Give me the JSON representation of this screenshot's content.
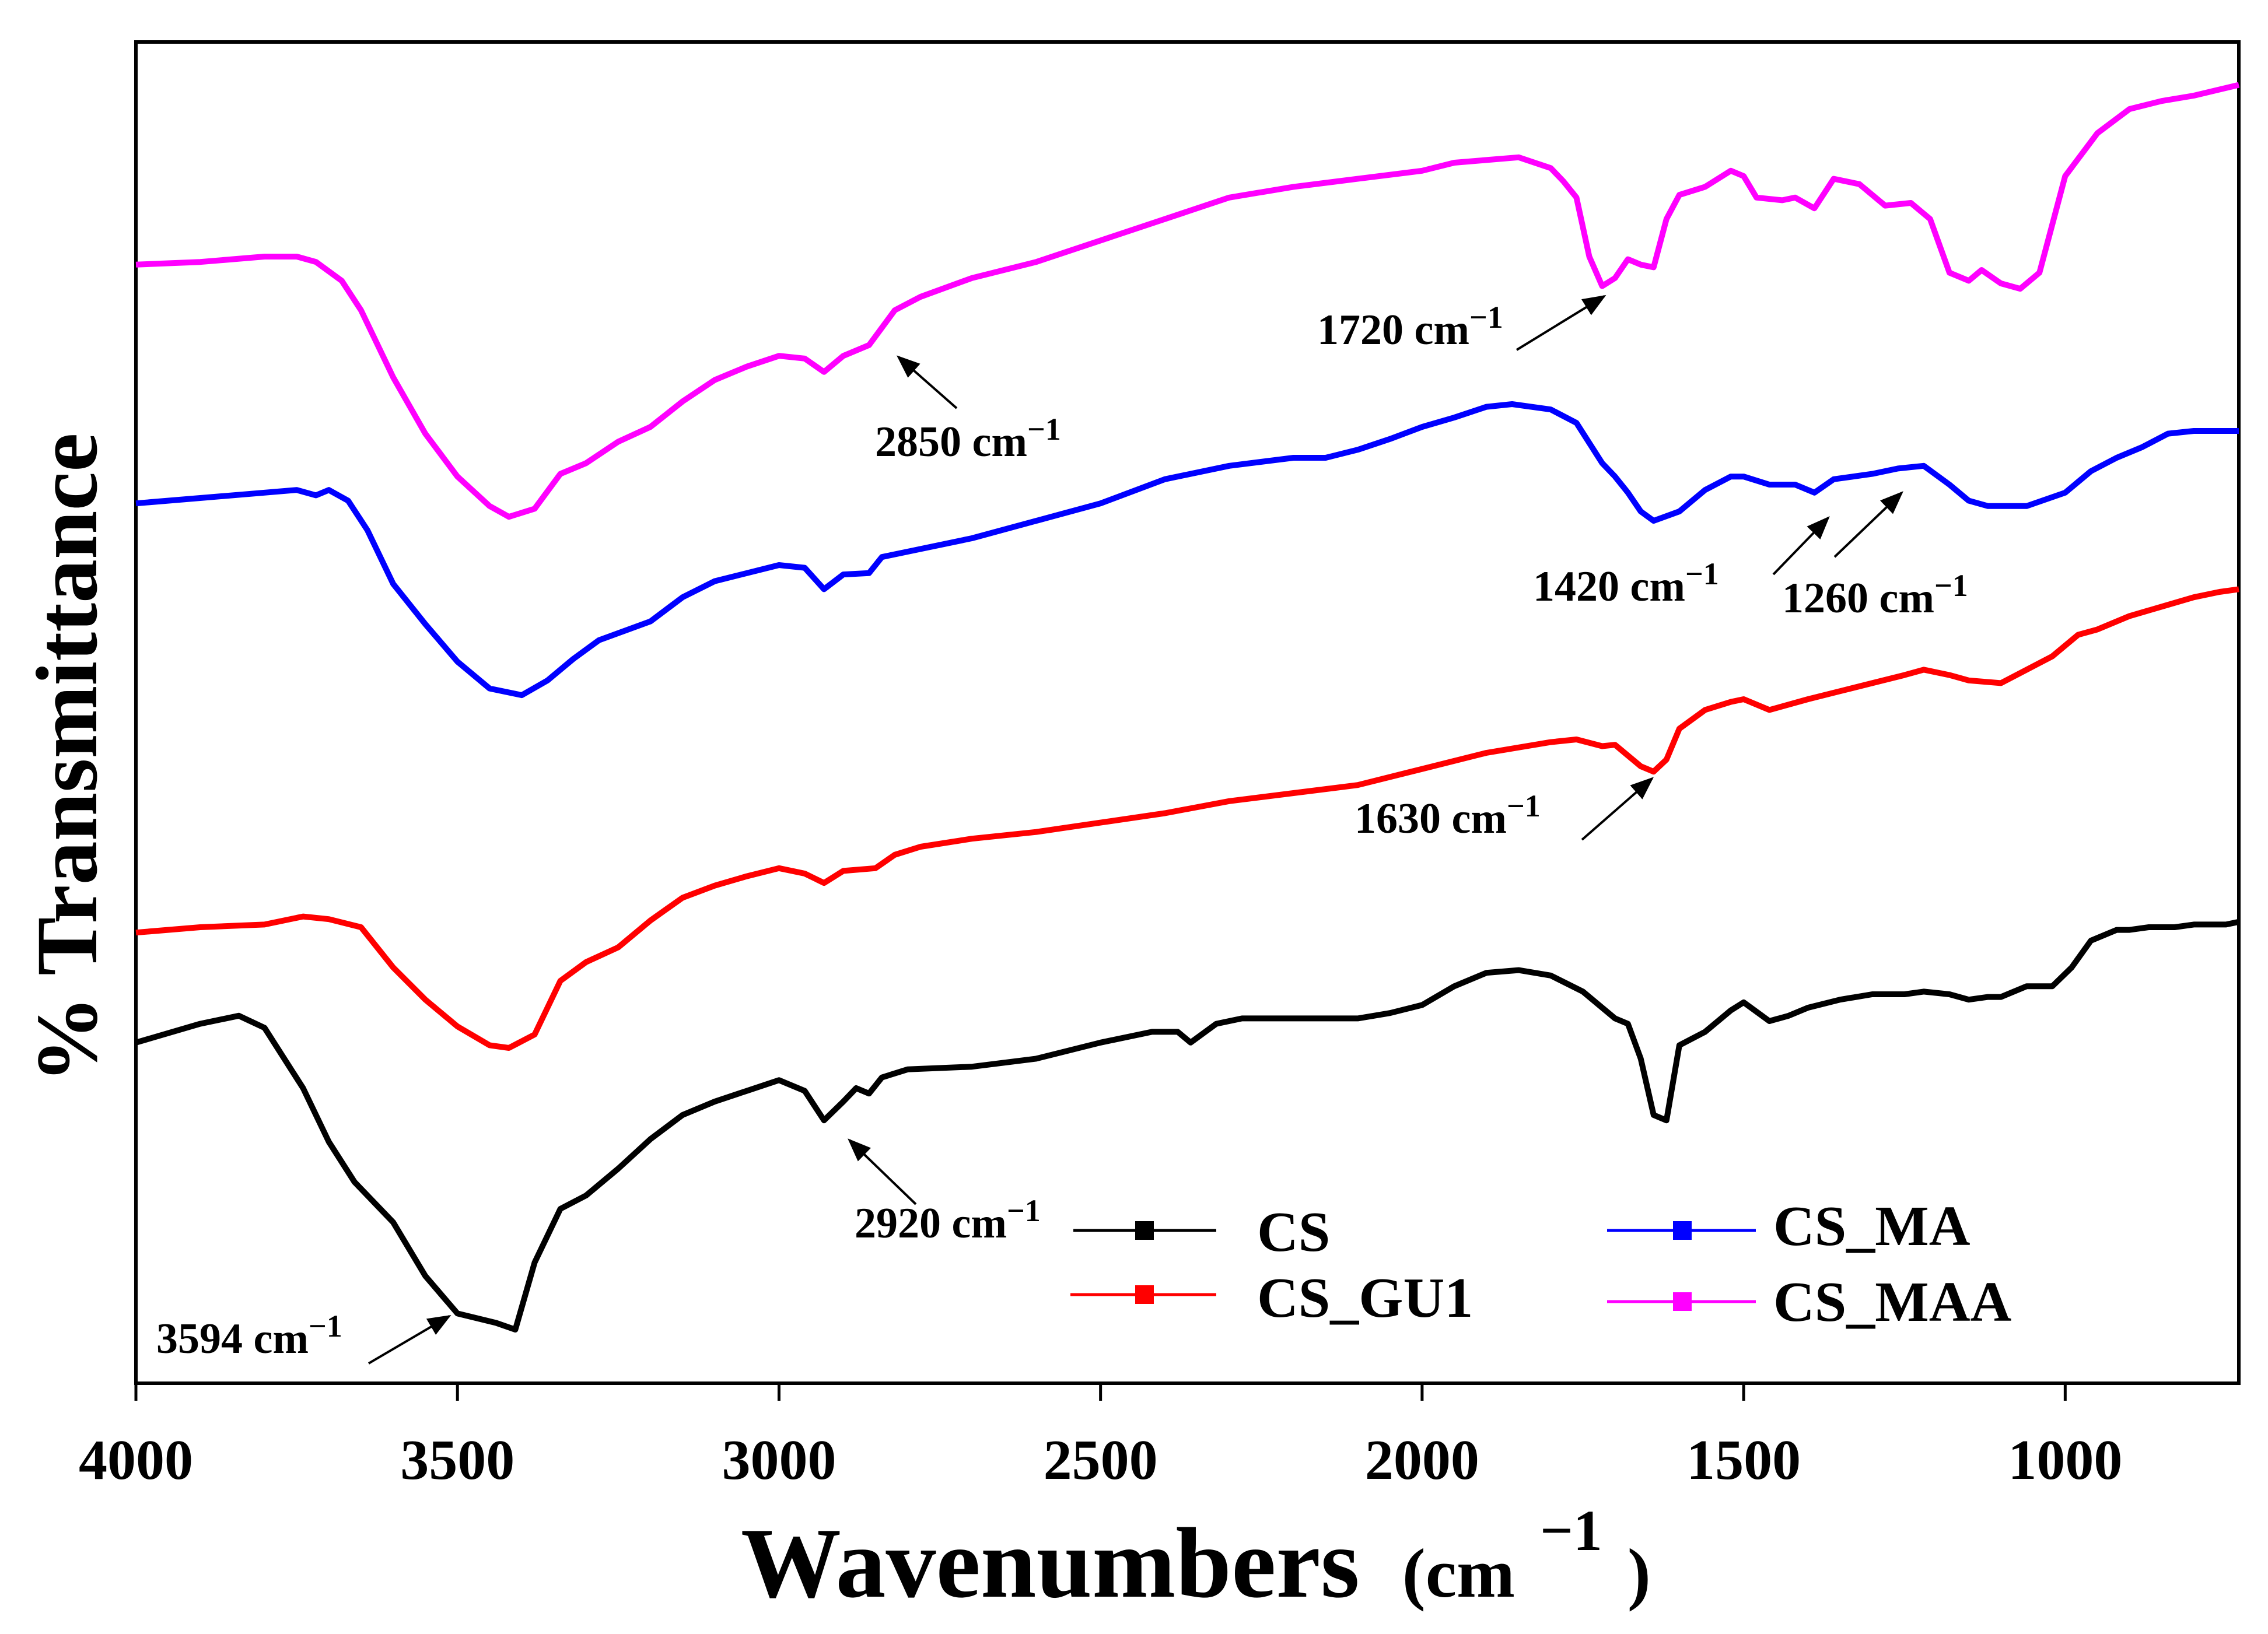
{
  "chart_data": {
    "type": "line",
    "title": "",
    "xlabel": "Wavenumbers",
    "xlabel_unit_base": "(cm",
    "xlabel_unit_exp": "−1",
    "xlabel_unit_close": ")",
    "ylabel": "% Transmittance",
    "xlim": [
      4000,
      730
    ],
    "ylim": [
      0,
      100
    ],
    "x_reversed": true,
    "grid": false,
    "x_ticks": [
      4000,
      3500,
      3000,
      2500,
      2000,
      1500,
      1000
    ],
    "x_tick_labels": [
      "4000",
      "3500",
      "3000",
      "2500",
      "2000",
      "1500",
      "1000"
    ],
    "legend_position": "bottom-right",
    "series": [
      {
        "name": "CS",
        "color": "#000000",
        "points": [
          [
            4000,
            25.4
          ],
          [
            3900,
            26.8
          ],
          [
            3840,
            27.4
          ],
          [
            3800,
            26.5
          ],
          [
            3740,
            22
          ],
          [
            3700,
            18
          ],
          [
            3660,
            15
          ],
          [
            3600,
            12
          ],
          [
            3550,
            8
          ],
          [
            3500,
            5.2
          ],
          [
            3440,
            4.5
          ],
          [
            3410,
            4
          ],
          [
            3380,
            9
          ],
          [
            3340,
            13
          ],
          [
            3300,
            14
          ],
          [
            3250,
            16
          ],
          [
            3200,
            18.2
          ],
          [
            3150,
            20
          ],
          [
            3100,
            21
          ],
          [
            3050,
            21.8
          ],
          [
            3000,
            22.6
          ],
          [
            2960,
            21.8
          ],
          [
            2930,
            19.6
          ],
          [
            2900,
            21
          ],
          [
            2880,
            22
          ],
          [
            2860,
            21.6
          ],
          [
            2840,
            22.8
          ],
          [
            2800,
            23.4
          ],
          [
            2700,
            23.6
          ],
          [
            2600,
            24.2
          ],
          [
            2500,
            25.4
          ],
          [
            2420,
            26.2
          ],
          [
            2380,
            26.2
          ],
          [
            2360,
            25.4
          ],
          [
            2320,
            26.8
          ],
          [
            2280,
            27.2
          ],
          [
            2200,
            27.2
          ],
          [
            2100,
            27.2
          ],
          [
            2050,
            27.6
          ],
          [
            2000,
            28.2
          ],
          [
            1950,
            29.6
          ],
          [
            1900,
            30.6
          ],
          [
            1850,
            30.8
          ],
          [
            1800,
            30.4
          ],
          [
            1750,
            29.2
          ],
          [
            1700,
            27.2
          ],
          [
            1680,
            26.8
          ],
          [
            1660,
            24.2
          ],
          [
            1640,
            20
          ],
          [
            1620,
            19.6
          ],
          [
            1600,
            25.2
          ],
          [
            1560,
            26.2
          ],
          [
            1520,
            27.8
          ],
          [
            1500,
            28.4
          ],
          [
            1460,
            27
          ],
          [
            1430,
            27.4
          ],
          [
            1400,
            28
          ],
          [
            1350,
            28.6
          ],
          [
            1300,
            29
          ],
          [
            1250,
            29
          ],
          [
            1220,
            29.2
          ],
          [
            1180,
            29
          ],
          [
            1150,
            28.6
          ],
          [
            1120,
            28.8
          ],
          [
            1100,
            28.8
          ],
          [
            1060,
            29.6
          ],
          [
            1020,
            29.6
          ],
          [
            990,
            31
          ],
          [
            960,
            33
          ],
          [
            920,
            33.8
          ],
          [
            900,
            33.8
          ],
          [
            870,
            34
          ],
          [
            830,
            34
          ],
          [
            800,
            34.2
          ],
          [
            750,
            34.2
          ],
          [
            730,
            34.4
          ]
        ]
      },
      {
        "name": "CS_GU1",
        "color": "#ff0000",
        "points": [
          [
            4000,
            33.6
          ],
          [
            3900,
            34
          ],
          [
            3800,
            34.2
          ],
          [
            3740,
            34.8
          ],
          [
            3700,
            34.6
          ],
          [
            3650,
            34
          ],
          [
            3600,
            31
          ],
          [
            3550,
            28.6
          ],
          [
            3500,
            26.6
          ],
          [
            3450,
            25.2
          ],
          [
            3420,
            25
          ],
          [
            3380,
            26
          ],
          [
            3340,
            30
          ],
          [
            3300,
            31.4
          ],
          [
            3250,
            32.5
          ],
          [
            3200,
            34.5
          ],
          [
            3150,
            36.2
          ],
          [
            3100,
            37.1
          ],
          [
            3050,
            37.8
          ],
          [
            3000,
            38.4
          ],
          [
            2960,
            38
          ],
          [
            2930,
            37.3
          ],
          [
            2900,
            38.2
          ],
          [
            2850,
            38.4
          ],
          [
            2820,
            39.4
          ],
          [
            2780,
            40
          ],
          [
            2700,
            40.6
          ],
          [
            2600,
            41.1
          ],
          [
            2500,
            41.8
          ],
          [
            2400,
            42.5
          ],
          [
            2300,
            43.4
          ],
          [
            2200,
            44
          ],
          [
            2100,
            44.6
          ],
          [
            2000,
            45.8
          ],
          [
            1900,
            47
          ],
          [
            1800,
            47.8
          ],
          [
            1760,
            48
          ],
          [
            1720,
            47.5
          ],
          [
            1700,
            47.6
          ],
          [
            1680,
            46.8
          ],
          [
            1660,
            46
          ],
          [
            1640,
            45.6
          ],
          [
            1620,
            46.5
          ],
          [
            1600,
            48.8
          ],
          [
            1560,
            50.2
          ],
          [
            1520,
            50.8
          ],
          [
            1500,
            51
          ],
          [
            1460,
            50.2
          ],
          [
            1400,
            51
          ],
          [
            1350,
            51.6
          ],
          [
            1300,
            52.2
          ],
          [
            1250,
            52.8
          ],
          [
            1220,
            53.2
          ],
          [
            1180,
            52.8
          ],
          [
            1150,
            52.4
          ],
          [
            1100,
            52.2
          ],
          [
            1060,
            53.2
          ],
          [
            1020,
            54.2
          ],
          [
            980,
            55.8
          ],
          [
            950,
            56.2
          ],
          [
            900,
            57.2
          ],
          [
            850,
            57.9
          ],
          [
            800,
            58.6
          ],
          [
            760,
            59
          ],
          [
            730,
            59.2
          ]
        ]
      },
      {
        "name": "CS_MA",
        "color": "#0000ff",
        "points": [
          [
            4000,
            65.6
          ],
          [
            3900,
            66
          ],
          [
            3800,
            66.4
          ],
          [
            3750,
            66.6
          ],
          [
            3720,
            66.2
          ],
          [
            3700,
            66.6
          ],
          [
            3670,
            65.8
          ],
          [
            3640,
            63.6
          ],
          [
            3600,
            59.6
          ],
          [
            3550,
            56.6
          ],
          [
            3500,
            53.8
          ],
          [
            3450,
            51.8
          ],
          [
            3400,
            51.3
          ],
          [
            3360,
            52.4
          ],
          [
            3320,
            54
          ],
          [
            3280,
            55.4
          ],
          [
            3200,
            56.8
          ],
          [
            3150,
            58.6
          ],
          [
            3100,
            59.8
          ],
          [
            3050,
            60.4
          ],
          [
            3000,
            61
          ],
          [
            2960,
            60.8
          ],
          [
            2930,
            59.2
          ],
          [
            2900,
            60.3
          ],
          [
            2860,
            60.4
          ],
          [
            2840,
            61.6
          ],
          [
            2800,
            62
          ],
          [
            2700,
            63
          ],
          [
            2600,
            64.3
          ],
          [
            2500,
            65.6
          ],
          [
            2400,
            67.4
          ],
          [
            2300,
            68.4
          ],
          [
            2200,
            69
          ],
          [
            2150,
            69
          ],
          [
            2100,
            69.6
          ],
          [
            2050,
            70.4
          ],
          [
            2000,
            71.3
          ],
          [
            1950,
            72
          ],
          [
            1900,
            72.8
          ],
          [
            1860,
            73
          ],
          [
            1800,
            72.6
          ],
          [
            1760,
            71.6
          ],
          [
            1720,
            68.6
          ],
          [
            1700,
            67.6
          ],
          [
            1680,
            66.4
          ],
          [
            1660,
            65
          ],
          [
            1640,
            64.3
          ],
          [
            1600,
            65
          ],
          [
            1560,
            66.6
          ],
          [
            1520,
            67.6
          ],
          [
            1500,
            67.6
          ],
          [
            1460,
            67
          ],
          [
            1420,
            67
          ],
          [
            1390,
            66.4
          ],
          [
            1360,
            67.4
          ],
          [
            1300,
            67.8
          ],
          [
            1260,
            68.2
          ],
          [
            1220,
            68.4
          ],
          [
            1180,
            67
          ],
          [
            1150,
            65.8
          ],
          [
            1120,
            65.4
          ],
          [
            1100,
            65.4
          ],
          [
            1060,
            65.4
          ],
          [
            1000,
            66.4
          ],
          [
            960,
            68
          ],
          [
            920,
            69
          ],
          [
            880,
            69.8
          ],
          [
            840,
            70.8
          ],
          [
            800,
            71
          ],
          [
            730,
            71
          ]
        ]
      },
      {
        "name": "CS_MAA",
        "color": "#ff00ff",
        "points": [
          [
            4000,
            83.4
          ],
          [
            3900,
            83.6
          ],
          [
            3800,
            84
          ],
          [
            3750,
            84
          ],
          [
            3720,
            83.6
          ],
          [
            3680,
            82.2
          ],
          [
            3650,
            80
          ],
          [
            3600,
            75
          ],
          [
            3550,
            70.8
          ],
          [
            3500,
            67.6
          ],
          [
            3450,
            65.4
          ],
          [
            3420,
            64.6
          ],
          [
            3380,
            65.2
          ],
          [
            3340,
            67.8
          ],
          [
            3300,
            68.6
          ],
          [
            3250,
            70.2
          ],
          [
            3200,
            71.3
          ],
          [
            3150,
            73.2
          ],
          [
            3100,
            74.8
          ],
          [
            3050,
            75.8
          ],
          [
            3000,
            76.6
          ],
          [
            2960,
            76.4
          ],
          [
            2930,
            75.4
          ],
          [
            2900,
            76.6
          ],
          [
            2860,
            77.4
          ],
          [
            2820,
            80
          ],
          [
            2780,
            81
          ],
          [
            2700,
            82.4
          ],
          [
            2600,
            83.6
          ],
          [
            2500,
            85.2
          ],
          [
            2400,
            86.8
          ],
          [
            2300,
            88.4
          ],
          [
            2200,
            89.2
          ],
          [
            2100,
            89.8
          ],
          [
            2000,
            90.4
          ],
          [
            1950,
            91
          ],
          [
            1900,
            91.2
          ],
          [
            1850,
            91.4
          ],
          [
            1800,
            90.6
          ],
          [
            1780,
            89.6
          ],
          [
            1760,
            88.4
          ],
          [
            1740,
            84
          ],
          [
            1720,
            81.8
          ],
          [
            1700,
            82.4
          ],
          [
            1680,
            83.8
          ],
          [
            1660,
            83.4
          ],
          [
            1640,
            83.2
          ],
          [
            1620,
            86.8
          ],
          [
            1600,
            88.6
          ],
          [
            1560,
            89.2
          ],
          [
            1520,
            90.4
          ],
          [
            1500,
            90
          ],
          [
            1480,
            88.4
          ],
          [
            1440,
            88.2
          ],
          [
            1420,
            88.4
          ],
          [
            1390,
            87.6
          ],
          [
            1360,
            89.8
          ],
          [
            1320,
            89.4
          ],
          [
            1280,
            87.8
          ],
          [
            1240,
            88
          ],
          [
            1210,
            86.8
          ],
          [
            1180,
            82.8
          ],
          [
            1150,
            82.2
          ],
          [
            1130,
            83
          ],
          [
            1100,
            82
          ],
          [
            1070,
            81.6
          ],
          [
            1040,
            82.8
          ],
          [
            1000,
            90
          ],
          [
            950,
            93.2
          ],
          [
            900,
            95
          ],
          [
            850,
            95.6
          ],
          [
            800,
            96
          ],
          [
            730,
            96.8
          ]
        ]
      }
    ],
    "annotations": [
      {
        "label": "3594 cm",
        "sup": "−1",
        "wavenumber": 3594
      },
      {
        "label": "2920 cm",
        "sup": "−1",
        "wavenumber": 2920
      },
      {
        "label": "2850 cm",
        "sup": "−1",
        "wavenumber": 2850
      },
      {
        "label": "1720 cm",
        "sup": "−1",
        "wavenumber": 1720
      },
      {
        "label": "1630 cm",
        "sup": "−1",
        "wavenumber": 1630
      },
      {
        "label": "1420 cm",
        "sup": "−1",
        "wavenumber": 1420
      },
      {
        "label": "1260 cm",
        "sup": "−1",
        "wavenumber": 1260
      }
    ]
  }
}
